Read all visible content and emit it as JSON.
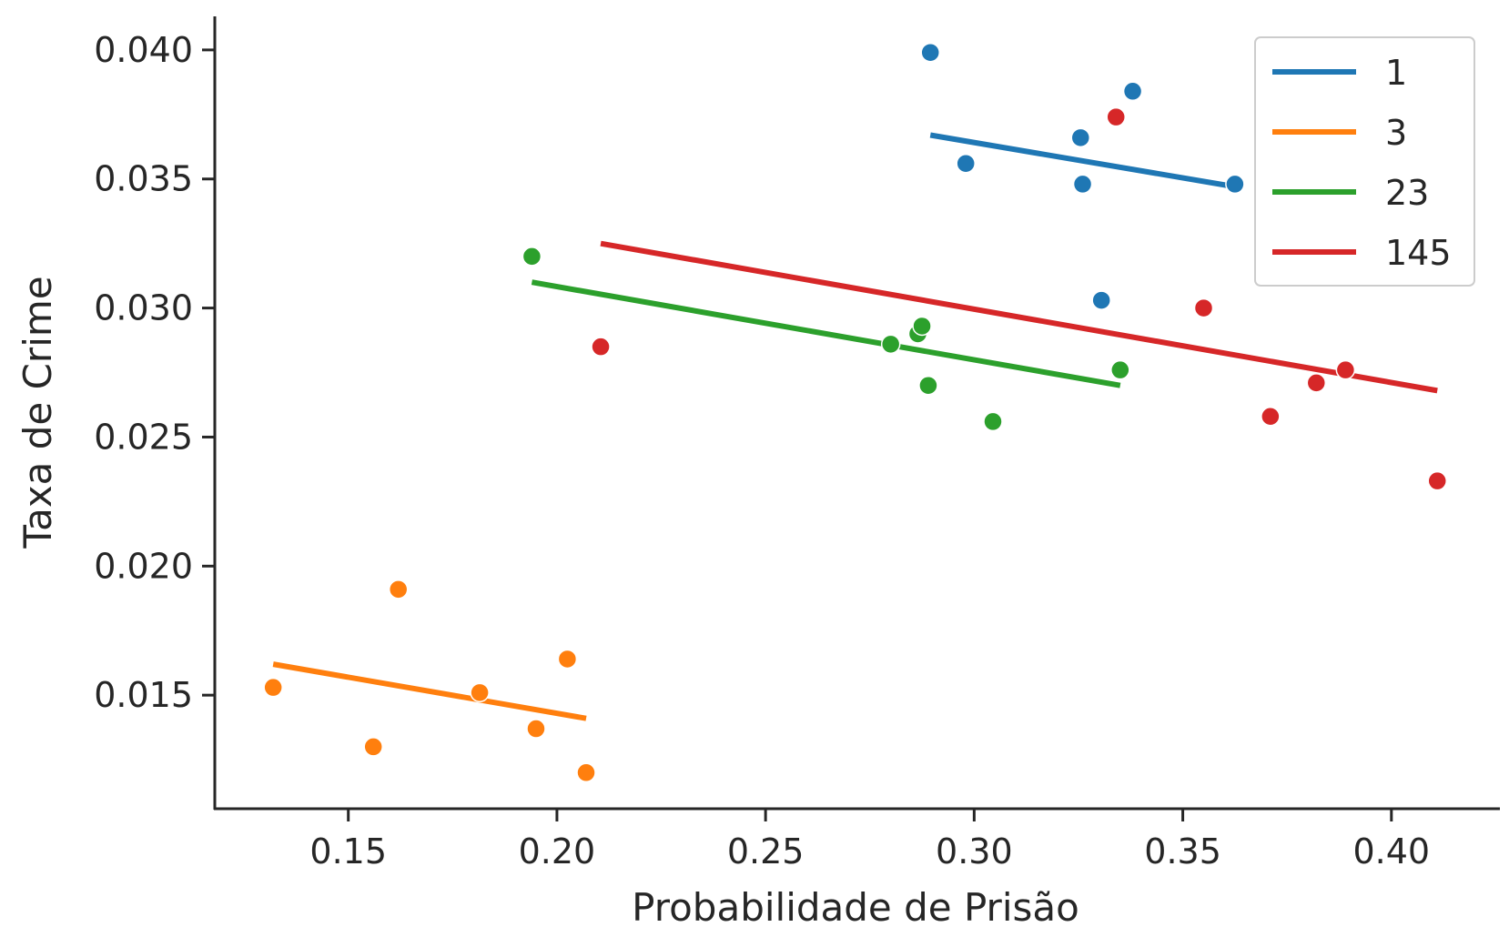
{
  "chart_data": {
    "type": "scatter",
    "xlabel": "Probabilidade de Prisão",
    "ylabel": "Taxa de Crime",
    "xlim": [
      0.118,
      0.426
    ],
    "ylim": [
      0.0106,
      0.0413
    ],
    "xticks": [
      "0.15",
      "0.20",
      "0.25",
      "0.30",
      "0.35",
      "0.40"
    ],
    "yticks": [
      "0.015",
      "0.020",
      "0.025",
      "0.030",
      "0.035",
      "0.040"
    ],
    "grid": false,
    "legend_position": "top-right",
    "series": [
      {
        "name": "1",
        "color": "#1f77b4",
        "points": [
          [
            0.2895,
            0.0399
          ],
          [
            0.298,
            0.0356
          ],
          [
            0.3255,
            0.0366
          ],
          [
            0.326,
            0.0348
          ],
          [
            0.3305,
            0.0303
          ],
          [
            0.338,
            0.0384
          ],
          [
            0.3625,
            0.0348
          ]
        ],
        "fit": [
          [
            0.2895,
            0.0367
          ],
          [
            0.3625,
            0.0347
          ]
        ]
      },
      {
        "name": "3",
        "color": "#ff7f0e",
        "points": [
          [
            0.132,
            0.0153
          ],
          [
            0.156,
            0.013
          ],
          [
            0.162,
            0.0191
          ],
          [
            0.1815,
            0.0151
          ],
          [
            0.195,
            0.0137
          ],
          [
            0.2025,
            0.0164
          ],
          [
            0.207,
            0.012
          ]
        ],
        "fit": [
          [
            0.132,
            0.0162
          ],
          [
            0.207,
            0.0141
          ]
        ]
      },
      {
        "name": "23",
        "color": "#2ca02c",
        "points": [
          [
            0.194,
            0.032
          ],
          [
            0.28,
            0.0286
          ],
          [
            0.2865,
            0.029
          ],
          [
            0.2875,
            0.0293
          ],
          [
            0.289,
            0.027
          ],
          [
            0.3045,
            0.0256
          ],
          [
            0.335,
            0.0276
          ]
        ],
        "fit": [
          [
            0.194,
            0.031
          ],
          [
            0.335,
            0.027
          ]
        ]
      },
      {
        "name": "145",
        "color": "#d62728",
        "points": [
          [
            0.2105,
            0.0285
          ],
          [
            0.334,
            0.0374
          ],
          [
            0.355,
            0.03
          ],
          [
            0.371,
            0.0258
          ],
          [
            0.382,
            0.0271
          ],
          [
            0.389,
            0.0276
          ],
          [
            0.411,
            0.0233
          ]
        ],
        "fit": [
          [
            0.2105,
            0.0325
          ],
          [
            0.411,
            0.0268
          ]
        ]
      }
    ]
  }
}
